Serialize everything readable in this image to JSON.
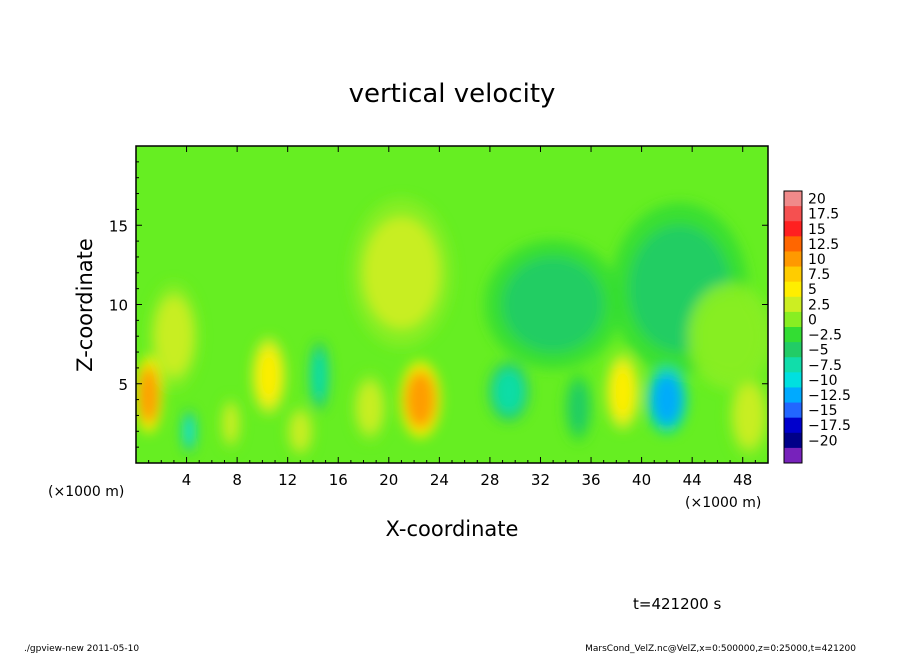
{
  "chart_data": {
    "type": "heatmap",
    "title": "vertical velocity",
    "xlabel": "X-coordinate",
    "ylabel": "Z-coordinate",
    "x_unit_label": "(×1000 m)",
    "y_unit_label": "(×1000 m)",
    "xlim": [
      0,
      50
    ],
    "ylim": [
      0,
      20
    ],
    "x_ticks": [
      4,
      8,
      12,
      16,
      20,
      24,
      28,
      32,
      36,
      40,
      44,
      48
    ],
    "x_tick_labels": [
      "4",
      "8",
      "12",
      "16",
      "20",
      "24",
      "28",
      "32",
      "36",
      "40",
      "44",
      "48"
    ],
    "y_ticks": [
      5,
      10,
      15
    ],
    "y_tick_labels": [
      "5",
      "10",
      "15"
    ],
    "colorbar": {
      "levels": [
        20,
        17.5,
        15,
        12.5,
        10,
        7.5,
        5,
        2.5,
        0,
        -2.5,
        -5,
        -7.5,
        -10,
        -12.5,
        -15,
        -17.5,
        -20
      ],
      "labels": [
        "20",
        "17.5",
        "15",
        "12.5",
        "10",
        "7.5",
        "5",
        "2.5",
        "0",
        "−2.5",
        "−5",
        "−7.5",
        "−10",
        "−12.5",
        "−15",
        "−17.5",
        "−20"
      ],
      "colors": [
        "#f08a8a",
        "#f55050",
        "#ff2020",
        "#ff6600",
        "#ff9900",
        "#ffcc00",
        "#ffee00",
        "#ccee22",
        "#88ee22",
        "#33dd33",
        "#22cc66",
        "#11ddaa",
        "#00e0e0",
        "#00aaff",
        "#2266ff",
        "#0000cc",
        "#000088",
        "#7722bb"
      ]
    },
    "features": [
      {
        "x": 1.0,
        "z": 4.3,
        "value": 11.5,
        "sx": 0.8,
        "sz": 1.8
      },
      {
        "x": 4.2,
        "z": 2.0,
        "value": -7.5,
        "sx": 0.4,
        "sz": 1.0
      },
      {
        "x": 7.5,
        "z": 2.5,
        "value": 4,
        "sx": 0.6,
        "sz": 1.2
      },
      {
        "x": 10.5,
        "z": 5.5,
        "value": 6.5,
        "sx": 1.0,
        "sz": 1.8
      },
      {
        "x": 14.5,
        "z": 5.5,
        "value": -6,
        "sx": 0.6,
        "sz": 1.6
      },
      {
        "x": 13.0,
        "z": 2.0,
        "value": 3,
        "sx": 0.8,
        "sz": 1.2
      },
      {
        "x": 22.5,
        "z": 4.0,
        "value": 12,
        "sx": 1.2,
        "sz": 1.8
      },
      {
        "x": 18.5,
        "z": 3.5,
        "value": 3,
        "sx": 1.0,
        "sz": 1.6
      },
      {
        "x": 29.5,
        "z": 4.5,
        "value": -7,
        "sx": 1.2,
        "sz": 1.4
      },
      {
        "x": 35.0,
        "z": 3.5,
        "value": -3,
        "sx": 0.8,
        "sz": 1.6
      },
      {
        "x": 38.5,
        "z": 4.5,
        "value": 6,
        "sx": 1.0,
        "sz": 1.8
      },
      {
        "x": 42.0,
        "z": 4.0,
        "value": -12,
        "sx": 1.2,
        "sz": 1.6
      },
      {
        "x": 48.5,
        "z": 3.0,
        "value": 5,
        "sx": 1.2,
        "sz": 2.0
      },
      {
        "x": 21.0,
        "z": 12.0,
        "value": 3,
        "sx": 3.0,
        "sz": 3.5
      },
      {
        "x": 33.0,
        "z": 10.0,
        "value": -4,
        "sx": 4.0,
        "sz": 3.0
      },
      {
        "x": 43.0,
        "z": 11.0,
        "value": -2.5,
        "sx": 4.0,
        "sz": 4.0
      },
      {
        "x": 3.0,
        "z": 8.0,
        "value": 4,
        "sx": 1.5,
        "sz": 2.5
      },
      {
        "x": 47.0,
        "z": 8.0,
        "value": 2.5,
        "sx": 2.5,
        "sz": 2.5
      }
    ]
  },
  "annotations": {
    "time": "t=421200 s"
  },
  "footer": {
    "left": "./gpview-new  2011-05-10",
    "right": "MarsCond_VelZ.nc@VelZ,x=0:500000,z=0:25000,t=421200"
  }
}
